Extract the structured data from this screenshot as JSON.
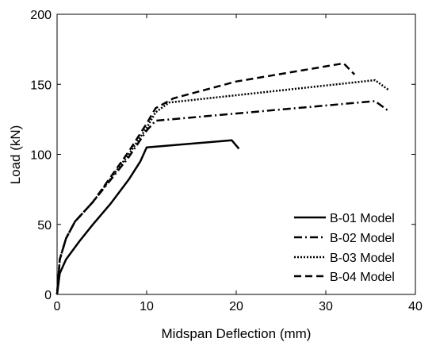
{
  "chart_data": {
    "type": "line",
    "xlabel": "Midspan Deflection (mm)",
    "ylabel": "Load (kN)",
    "xlim": [
      0,
      40
    ],
    "ylim": [
      0,
      200
    ],
    "xticks": [
      0,
      10,
      20,
      30,
      40
    ],
    "yticks": [
      0,
      50,
      100,
      150,
      200
    ],
    "legend_position": "bottom-right",
    "grid": false,
    "series": [
      {
        "name": "B-01 Model",
        "style": "solid",
        "x": [
          0,
          0.3,
          1,
          2.5,
          4,
          6,
          8,
          9.3,
          10,
          19.5,
          20.3
        ],
        "y": [
          0,
          15,
          25,
          38,
          50,
          65,
          82,
          95,
          105,
          110,
          104
        ]
      },
      {
        "name": "B-02 Model",
        "style": "dashdot",
        "x": [
          0,
          0.3,
          1,
          2,
          4,
          6,
          8,
          10,
          11,
          35.5,
          37
        ],
        "y": [
          0,
          25,
          40,
          52,
          66,
          82,
          98,
          117,
          124,
          138,
          131
        ]
      },
      {
        "name": "B-03 Model",
        "style": "dotted",
        "x": [
          0,
          0.3,
          1,
          2,
          4,
          6,
          8,
          10,
          11,
          12.5,
          35.5,
          37
        ],
        "y": [
          0,
          25,
          40,
          52,
          66,
          83,
          100,
          119,
          130,
          137,
          153,
          146
        ]
      },
      {
        "name": "B-04 Model",
        "style": "dashed",
        "x": [
          0,
          0.3,
          1,
          2,
          4,
          6,
          8,
          10,
          11,
          13,
          20,
          32,
          33.2
        ],
        "y": [
          0,
          25,
          40,
          52,
          66,
          84,
          102,
          122,
          133,
          140,
          152,
          165,
          157
        ]
      }
    ]
  }
}
